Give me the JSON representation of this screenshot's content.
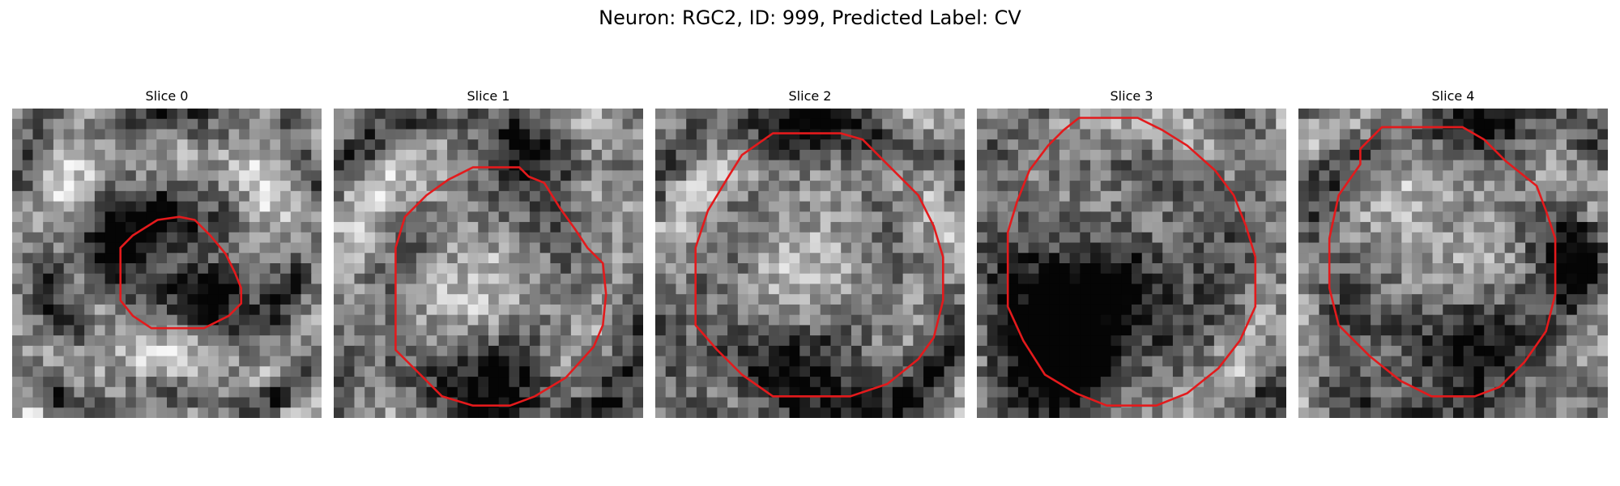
{
  "figure": {
    "title": "Neuron: RGC2, ID: 999, Predicted Label: CV"
  },
  "slices": [
    {
      "title": "Slice 0",
      "noise_seed": 11,
      "texture": [
        [
          0.3,
          0.3,
          0.55
        ],
        [
          0.7,
          0.3,
          0.55
        ],
        [
          0.5,
          0.7,
          0.5
        ]
      ],
      "dark_spots": [
        [
          0.35,
          0.45,
          0.1,
          0.55
        ],
        [
          0.65,
          0.62,
          0.08,
          0.7
        ],
        [
          0.5,
          0.35,
          0.08,
          0.5
        ]
      ],
      "contour": [
        [
          0.54,
          0.35
        ],
        [
          0.59,
          0.36
        ],
        [
          0.64,
          0.41
        ],
        [
          0.69,
          0.47
        ],
        [
          0.72,
          0.53
        ],
        [
          0.74,
          0.58
        ],
        [
          0.74,
          0.63
        ],
        [
          0.7,
          0.67
        ],
        [
          0.62,
          0.71
        ],
        [
          0.54,
          0.71
        ],
        [
          0.45,
          0.71
        ],
        [
          0.39,
          0.67
        ],
        [
          0.35,
          0.62
        ],
        [
          0.35,
          0.53
        ],
        [
          0.35,
          0.45
        ],
        [
          0.39,
          0.41
        ],
        [
          0.47,
          0.36
        ]
      ]
    },
    {
      "title": "Slice 1",
      "noise_seed": 23,
      "texture": [
        [
          0.3,
          0.45,
          0.4
        ],
        [
          0.62,
          0.6,
          0.45
        ],
        [
          0.5,
          0.85,
          0.35
        ]
      ],
      "dark_spots": [
        [
          0.55,
          0.92,
          0.14,
          0.6
        ],
        [
          0.62,
          0.15,
          0.1,
          0.35
        ]
      ],
      "contour": [
        [
          0.52,
          0.19
        ],
        [
          0.6,
          0.19
        ],
        [
          0.63,
          0.22
        ],
        [
          0.68,
          0.24
        ],
        [
          0.73,
          0.32
        ],
        [
          0.78,
          0.39
        ],
        [
          0.82,
          0.45
        ],
        [
          0.87,
          0.5
        ],
        [
          0.88,
          0.6
        ],
        [
          0.87,
          0.7
        ],
        [
          0.84,
          0.77
        ],
        [
          0.75,
          0.87
        ],
        [
          0.65,
          0.93
        ],
        [
          0.57,
          0.96
        ],
        [
          0.45,
          0.96
        ],
        [
          0.35,
          0.93
        ],
        [
          0.28,
          0.86
        ],
        [
          0.2,
          0.78
        ],
        [
          0.2,
          0.55
        ],
        [
          0.2,
          0.45
        ],
        [
          0.23,
          0.35
        ],
        [
          0.3,
          0.28
        ],
        [
          0.37,
          0.23
        ],
        [
          0.45,
          0.19
        ]
      ]
    },
    {
      "title": "Slice 2",
      "noise_seed": 37,
      "texture": [
        [
          0.35,
          0.4,
          0.45
        ],
        [
          0.65,
          0.5,
          0.45
        ],
        [
          0.5,
          0.75,
          0.45
        ]
      ],
      "dark_spots": [
        [
          0.5,
          0.98,
          0.2,
          0.55
        ],
        [
          0.45,
          0.05,
          0.1,
          0.4
        ]
      ],
      "contour": [
        [
          0.38,
          0.08
        ],
        [
          0.6,
          0.08
        ],
        [
          0.67,
          0.1
        ],
        [
          0.77,
          0.2
        ],
        [
          0.85,
          0.28
        ],
        [
          0.9,
          0.38
        ],
        [
          0.93,
          0.48
        ],
        [
          0.93,
          0.62
        ],
        [
          0.9,
          0.74
        ],
        [
          0.85,
          0.81
        ],
        [
          0.75,
          0.89
        ],
        [
          0.63,
          0.93
        ],
        [
          0.53,
          0.93
        ],
        [
          0.38,
          0.93
        ],
        [
          0.28,
          0.86
        ],
        [
          0.2,
          0.78
        ],
        [
          0.13,
          0.7
        ],
        [
          0.13,
          0.57
        ],
        [
          0.13,
          0.45
        ],
        [
          0.17,
          0.33
        ],
        [
          0.23,
          0.23
        ],
        [
          0.28,
          0.15
        ]
      ]
    },
    {
      "title": "Slice 3",
      "noise_seed": 51,
      "texture": [
        [
          0.45,
          0.35,
          0.4
        ],
        [
          0.55,
          0.65,
          0.4
        ],
        [
          0.35,
          0.55,
          0.45
        ]
      ],
      "dark_spots": [
        [
          0.32,
          0.62,
          0.14,
          0.7
        ],
        [
          0.5,
          0.55,
          0.14,
          0.55
        ],
        [
          0.25,
          0.85,
          0.12,
          0.55
        ]
      ],
      "contour": [
        [
          0.33,
          0.03
        ],
        [
          0.52,
          0.03
        ],
        [
          0.6,
          0.07
        ],
        [
          0.68,
          0.12
        ],
        [
          0.77,
          0.2
        ],
        [
          0.83,
          0.28
        ],
        [
          0.87,
          0.38
        ],
        [
          0.9,
          0.48
        ],
        [
          0.9,
          0.64
        ],
        [
          0.85,
          0.75
        ],
        [
          0.78,
          0.84
        ],
        [
          0.68,
          0.92
        ],
        [
          0.58,
          0.96
        ],
        [
          0.42,
          0.96
        ],
        [
          0.32,
          0.92
        ],
        [
          0.22,
          0.86
        ],
        [
          0.15,
          0.75
        ],
        [
          0.1,
          0.64
        ],
        [
          0.1,
          0.4
        ],
        [
          0.13,
          0.3
        ],
        [
          0.17,
          0.2
        ],
        [
          0.23,
          0.12
        ],
        [
          0.28,
          0.07
        ]
      ]
    },
    {
      "title": "Slice 4",
      "noise_seed": 67,
      "texture": [
        [
          0.5,
          0.3,
          0.4
        ],
        [
          0.45,
          0.55,
          0.45
        ],
        [
          0.6,
          0.8,
          0.4
        ]
      ],
      "dark_spots": [
        [
          0.55,
          0.8,
          0.16,
          0.6
        ],
        [
          0.6,
          0.05,
          0.1,
          0.5
        ],
        [
          0.9,
          0.5,
          0.08,
          0.35
        ]
      ],
      "contour": [
        [
          0.27,
          0.06
        ],
        [
          0.53,
          0.06
        ],
        [
          0.6,
          0.1
        ],
        [
          0.67,
          0.17
        ],
        [
          0.77,
          0.25
        ],
        [
          0.8,
          0.33
        ],
        [
          0.83,
          0.42
        ],
        [
          0.83,
          0.6
        ],
        [
          0.8,
          0.72
        ],
        [
          0.73,
          0.82
        ],
        [
          0.65,
          0.9
        ],
        [
          0.57,
          0.93
        ],
        [
          0.43,
          0.93
        ],
        [
          0.33,
          0.88
        ],
        [
          0.23,
          0.8
        ],
        [
          0.13,
          0.7
        ],
        [
          0.1,
          0.58
        ],
        [
          0.1,
          0.42
        ],
        [
          0.13,
          0.28
        ],
        [
          0.2,
          0.18
        ],
        [
          0.2,
          0.13
        ]
      ]
    }
  ]
}
